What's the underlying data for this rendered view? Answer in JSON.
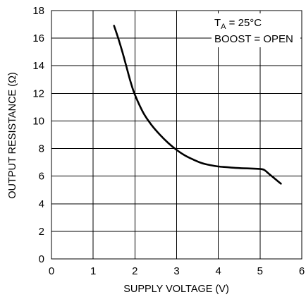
{
  "chart_data": {
    "type": "line",
    "xlabel": "SUPPLY VOLTAGE (V)",
    "ylabel": "OUTPUT RESISTANCE (Ω)",
    "xlim": [
      0,
      6
    ],
    "ylim": [
      0,
      18
    ],
    "xticks": [
      "0",
      "1",
      "2",
      "3",
      "4",
      "5",
      "6"
    ],
    "yticks": [
      "0",
      "2",
      "4",
      "6",
      "8",
      "10",
      "12",
      "14",
      "16",
      "18"
    ],
    "grid": true,
    "annotation": {
      "line1_prefix": "T",
      "line1_sub": "A",
      "line1_suffix": " = 25°C",
      "line2": "BOOST = OPEN"
    },
    "series": [
      {
        "x": [
          1.5,
          1.6,
          1.7,
          1.8,
          1.9,
          2.0,
          2.2,
          2.4,
          2.6,
          2.8,
          3.0,
          3.2,
          3.4,
          3.6,
          3.8,
          4.0,
          4.2,
          4.4,
          4.6,
          4.8,
          5.0,
          5.1,
          5.2,
          5.3,
          5.4,
          5.5
        ],
        "y": [
          16.9,
          16.0,
          15.0,
          13.9,
          12.8,
          11.9,
          10.6,
          9.7,
          9.0,
          8.4,
          7.9,
          7.5,
          7.2,
          6.95,
          6.8,
          6.7,
          6.65,
          6.6,
          6.57,
          6.55,
          6.52,
          6.45,
          6.2,
          5.95,
          5.7,
          5.45
        ]
      }
    ]
  }
}
